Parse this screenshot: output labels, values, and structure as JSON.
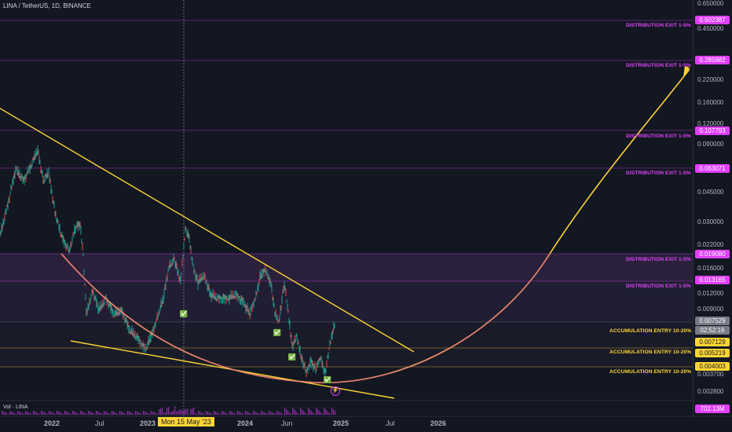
{
  "header": {
    "title": "LINA / TetherUS, 1D, BINANCE",
    "volume_title": "Vol · LINA"
  },
  "x_axis": {
    "labels": [
      "2022",
      "Jul",
      "2023",
      "2024",
      "Jun",
      "2025",
      "Jul",
      "2026"
    ],
    "crosshair_label": "Mon 15 May '23"
  },
  "y_axis": {
    "ticks": [
      "0.650000",
      "0.450000",
      "0.220000",
      "0.160000",
      "0.120000",
      "0.090000",
      "0.045000",
      "0.030000",
      "0.022000",
      "0.016000",
      "0.012000",
      "0.009000",
      "0.003700",
      "0.002800"
    ]
  },
  "price_badges": {
    "distribution": [
      "0.502387",
      "0.285982",
      "0.107793",
      "0.063071",
      "0.019080",
      "0.013165"
    ],
    "accumulation": [
      "0.007129",
      "0.005219",
      "0.004003"
    ],
    "current_price": "0.007529",
    "countdown": "02:52:16",
    "volume": "702.13M"
  },
  "zone_labels": {
    "distribution": "DISTRIBUTION EXIT 1-5%",
    "accumulation": "ACCUMULATION ENTRY 10-20%"
  },
  "markers": {
    "check": "✅",
    "lightning": "⚡"
  },
  "colors": {
    "background": "#131722",
    "distribution": "#e040fb",
    "accumulation": "#fcd535",
    "candles": "#26a69a",
    "trendline": "#fcd535",
    "curve_inner": "#f06292",
    "current_price": "#787b86"
  }
}
